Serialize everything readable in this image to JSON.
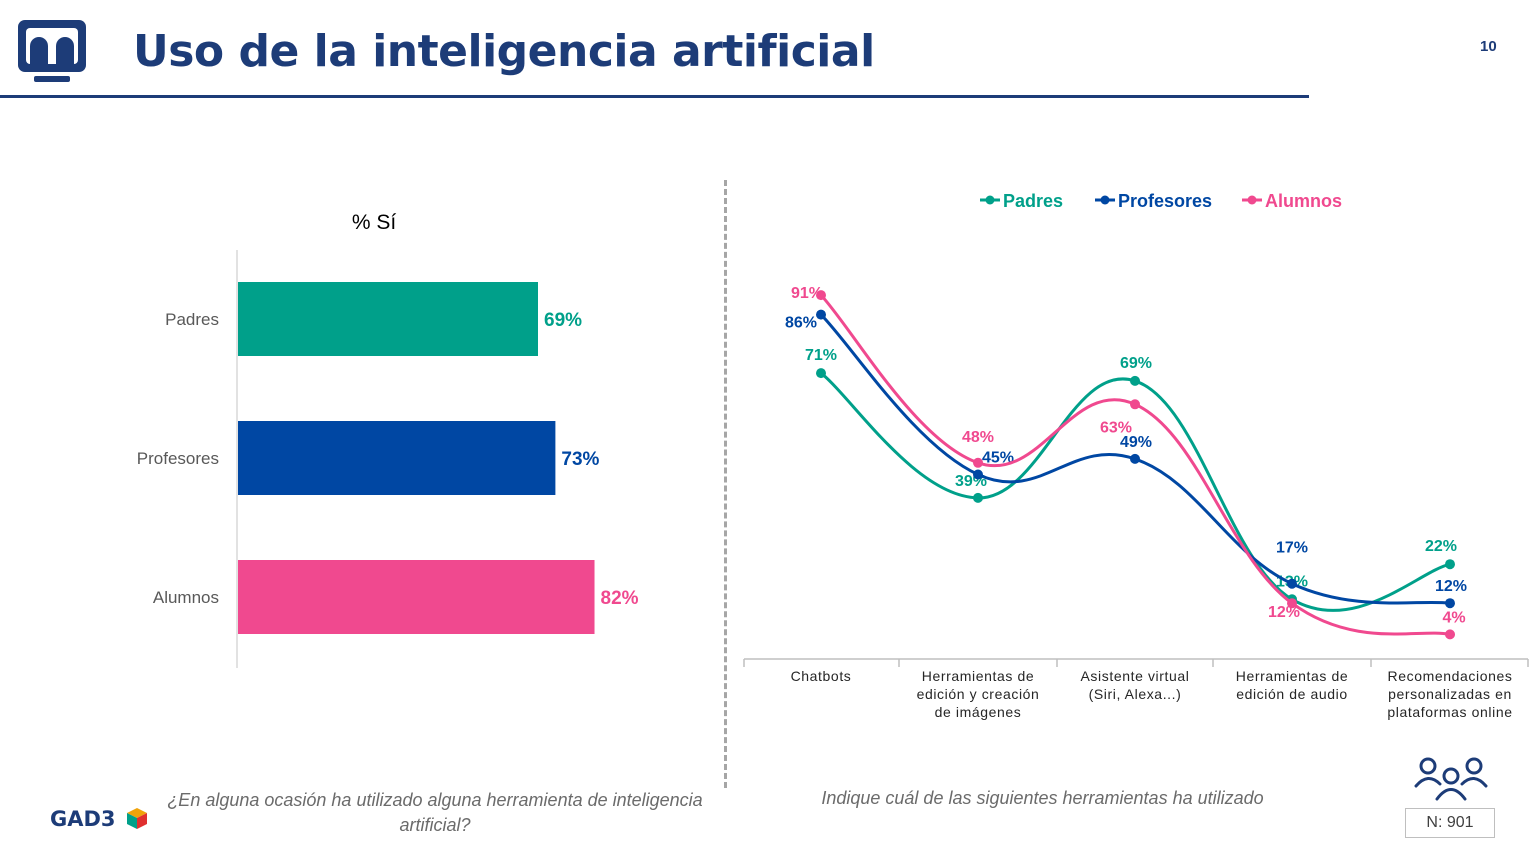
{
  "header": {
    "title": "Uso de la inteligencia artificial",
    "page_number": "10"
  },
  "colors": {
    "padres": "#00a08a",
    "profesores": "#0047a3",
    "alumnos": "#f0498f",
    "title": "#1d3c78",
    "muted": "#6b6b6b"
  },
  "left_panel": {
    "question": "¿En alguna ocasión ha utilizado alguna herramienta de inteligencia artificial?"
  },
  "right_panel": {
    "question": "Indique cuál de las siguientes herramientas ha utilizado"
  },
  "footer": {
    "brand": "GAD3",
    "sample": "N: 901",
    "sample_icon": "people-group-icon"
  },
  "chart_data": [
    {
      "type": "bar",
      "orientation": "horizontal",
      "title": "% Sí",
      "categories": [
        "Padres",
        "Profesores",
        "Alumnos"
      ],
      "values": [
        69,
        73,
        82
      ],
      "labels": [
        "69%",
        "73%",
        "82%"
      ],
      "colors": [
        "#00a08a",
        "#0047a3",
        "#f0498f"
      ],
      "xlim": [
        0,
        100
      ]
    },
    {
      "type": "line",
      "smooth": true,
      "categories": [
        [
          "Chatbots"
        ],
        [
          "Herramientas de",
          "edición y creación",
          "de imágenes"
        ],
        [
          "Asistente virtual",
          "(Siri, Alexa...)"
        ],
        [
          "Herramientas de",
          "edición de audio"
        ],
        [
          "Recomendaciones",
          "personalizadas en",
          "plataformas online"
        ]
      ],
      "ylim": [
        0,
        100
      ],
      "legend": "top",
      "series": [
        {
          "name": "Padres",
          "color": "#00a08a",
          "values": [
            71,
            39,
            69,
            13,
            22
          ],
          "labels": [
            "71%",
            "39%",
            "69%",
            "13%",
            "22%"
          ]
        },
        {
          "name": "Profesores",
          "color": "#0047a3",
          "values": [
            86,
            45,
            49,
            17,
            12
          ],
          "labels": [
            "86%",
            "45%",
            "49%",
            "17%",
            "12%"
          ]
        },
        {
          "name": "Alumnos",
          "color": "#f0498f",
          "values": [
            91,
            48,
            63,
            12,
            4
          ],
          "labels": [
            "91%",
            "48%",
            "63%",
            "12%",
            "4%"
          ]
        }
      ]
    }
  ]
}
